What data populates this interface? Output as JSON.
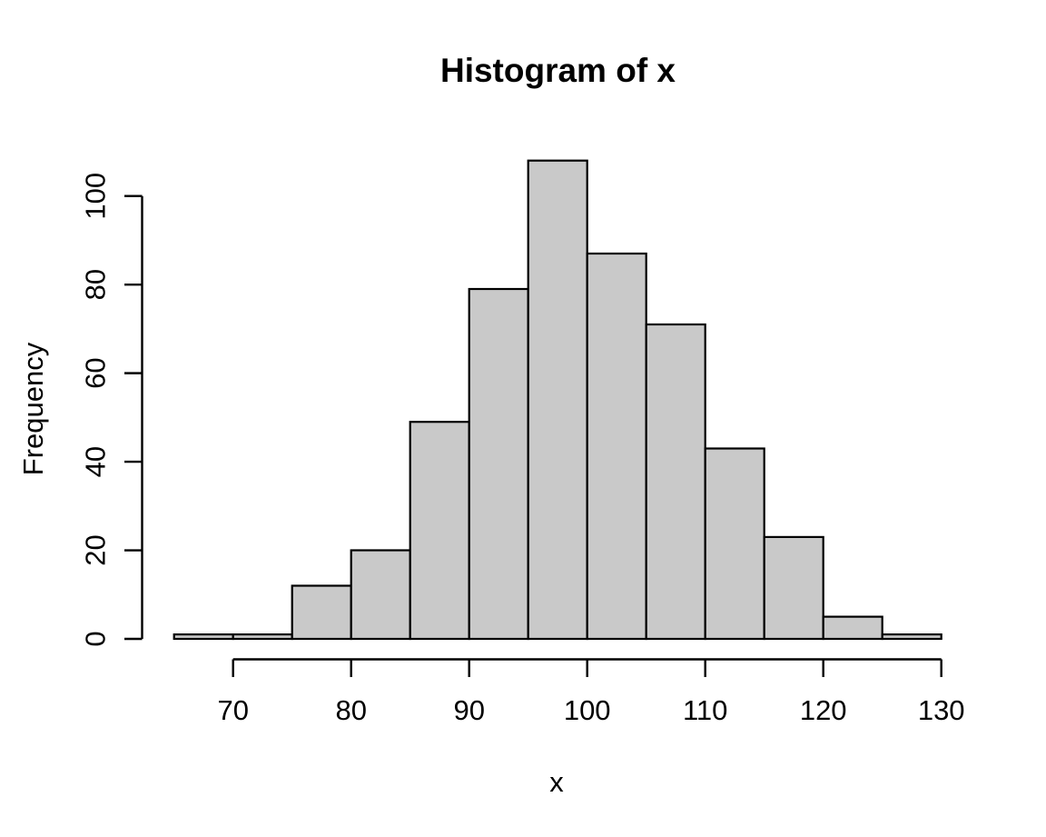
{
  "figure": {
    "background": "#ffffff"
  },
  "chart_data": {
    "type": "bar",
    "subtype": "histogram",
    "title": "Histogram of x",
    "xlabel": "x",
    "ylabel": "Frequency",
    "bin_edges": [
      65,
      70,
      75,
      80,
      85,
      90,
      95,
      100,
      105,
      110,
      115,
      120,
      125,
      130
    ],
    "counts": [
      1,
      1,
      12,
      20,
      49,
      79,
      108,
      87,
      71,
      43,
      23,
      5,
      1
    ],
    "x_ticks": [
      "70",
      "80",
      "90",
      "100",
      "110",
      "120",
      "130"
    ],
    "x_tick_values": [
      70,
      80,
      90,
      100,
      110,
      120,
      130
    ],
    "y_ticks": [
      "0",
      "20",
      "40",
      "60",
      "80",
      "100"
    ],
    "y_tick_values": [
      0,
      20,
      40,
      60,
      80,
      100
    ],
    "xlim": [
      65,
      130
    ],
    "ylim": [
      0,
      108
    ],
    "grid": "off",
    "legend": "none",
    "bar_fill": "#c9c9c9",
    "bar_border": "#000000",
    "axis_color": "#000000"
  }
}
